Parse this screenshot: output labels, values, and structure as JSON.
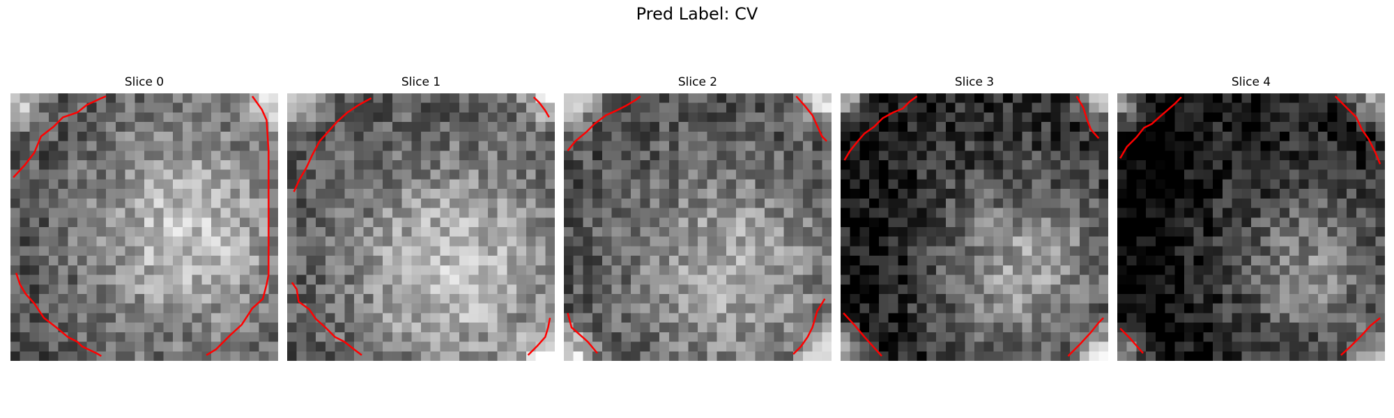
{
  "figure": {
    "title": "Pred Label: CV"
  },
  "slices": [
    {
      "title": "Slice 0"
    },
    {
      "title": "Slice 1"
    },
    {
      "title": "Slice 2"
    },
    {
      "title": "Slice 3"
    },
    {
      "title": "Slice 4"
    }
  ],
  "colors": {
    "contour": "#ff0000",
    "colormap": "gray"
  }
}
